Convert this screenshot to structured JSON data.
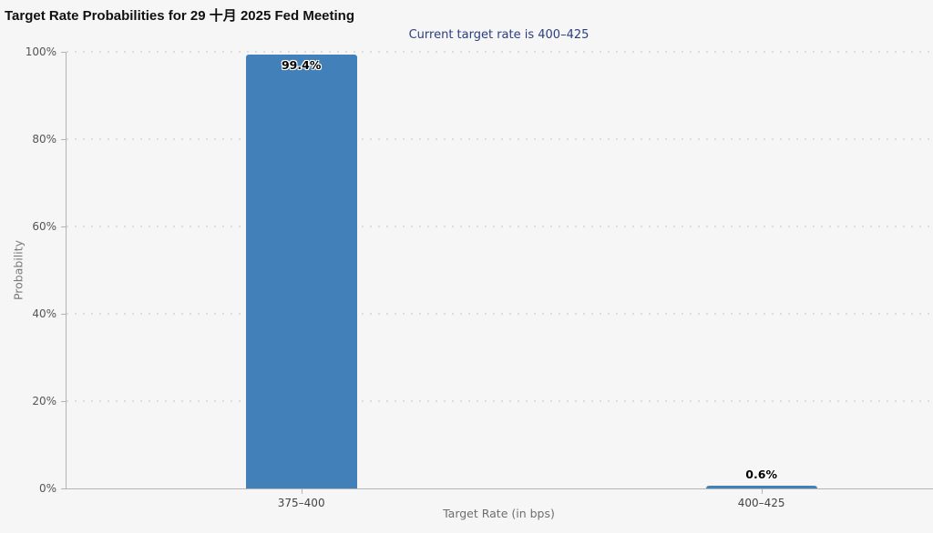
{
  "page": {
    "background": "#f6f6f6"
  },
  "chart_data": {
    "type": "bar",
    "title": "Target Rate Probabilities for 29 十月 2025 Fed Meeting",
    "subtitle": "Current target rate is 400–425",
    "xlabel": "Target Rate (in bps)",
    "ylabel": "Probability",
    "categories": [
      "375–400",
      "400–425"
    ],
    "values": [
      99.4,
      0.6
    ],
    "value_labels": [
      "99.4%",
      "0.6%"
    ],
    "ytick_labels": [
      "0%",
      "20%",
      "40%",
      "60%",
      "80%",
      "100%"
    ],
    "ylim": [
      0,
      100
    ],
    "grid": "dotted horizontal gridlines at 20% intervals",
    "legend": "none",
    "colors": {
      "bar": "#4180b8",
      "title_text": "#111111",
      "subtitle_text": "#2c3e80",
      "axis_text": "#555555",
      "axis_line": "#b3b3b3",
      "gridline": "#dcdcdc",
      "background": "#f6f6f6"
    }
  }
}
